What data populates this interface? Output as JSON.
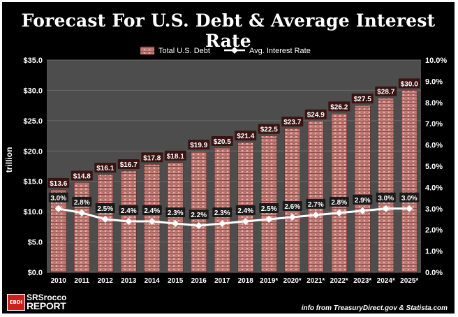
{
  "chart_data": {
    "type": "bar",
    "title": "Forecast For U.S. Debt & Average Interest Rate",
    "categories": [
      "2010",
      "2011",
      "2012",
      "2013",
      "2014",
      "2015",
      "2016",
      "2017",
      "2018",
      "2019*",
      "2020*",
      "2021*",
      "2022*",
      "2023*",
      "2024*",
      "2025*"
    ],
    "series": [
      {
        "name": "Total U.S. Debt",
        "type": "bar",
        "axis": "left",
        "values": [
          13.6,
          14.8,
          16.1,
          16.7,
          17.8,
          18.1,
          19.9,
          20.5,
          21.4,
          22.5,
          23.7,
          24.9,
          26.2,
          27.5,
          28.7,
          30.0
        ],
        "labels": [
          "$13.6",
          "$14.8",
          "$16.1",
          "$16.7",
          "$17.8",
          "$18.1",
          "$19.9",
          "$20.5",
          "$21.4",
          "$22.5",
          "$23.7",
          "$24.9",
          "$26.2",
          "$27.5",
          "$28.7",
          "$30.0"
        ]
      },
      {
        "name": "Avg. Interest Rate",
        "type": "line",
        "axis": "right",
        "values": [
          3.0,
          2.8,
          2.5,
          2.4,
          2.4,
          2.3,
          2.2,
          2.3,
          2.4,
          2.5,
          2.6,
          2.7,
          2.8,
          2.9,
          3.0,
          3.0
        ],
        "labels": [
          "3.0%",
          "2.8%",
          "2.5%",
          "2.4%",
          "2.4%",
          "2.3%",
          "2.2%",
          "2.3%",
          "2.4%",
          "2.5%",
          "2.6%",
          "2.7%",
          "2.8%",
          "2.9%",
          "3.0%",
          "3.0%"
        ]
      }
    ],
    "y_left": {
      "label": "trillion",
      "min": 0,
      "max": 35,
      "ticks": [
        "$0.0",
        "$5.0",
        "$10.0",
        "$15.0",
        "$20.0",
        "$25.0",
        "$30.0",
        "$35.0"
      ]
    },
    "y_right": {
      "min": 0,
      "max": 10,
      "ticks": [
        "0.0%",
        "1.0%",
        "2.0%",
        "3.0%",
        "4.0%",
        "5.0%",
        "6.0%",
        "7.0%",
        "8.0%",
        "9.0%",
        "10.0%"
      ]
    },
    "legend": {
      "position": "top"
    },
    "grid": true
  },
  "footer": {
    "logo_line1": "SRSrocco",
    "logo_line2": "REPORT",
    "logo_badge": "EBDI",
    "source": "info from TreasuryDirect.gov & Statista.com"
  },
  "colors": {
    "bar": "#c27e78",
    "bar_dark": "#8a4d48",
    "plot_bg": "#4d4d4d",
    "label_box": "#3a1412",
    "line": "#ffffff"
  }
}
